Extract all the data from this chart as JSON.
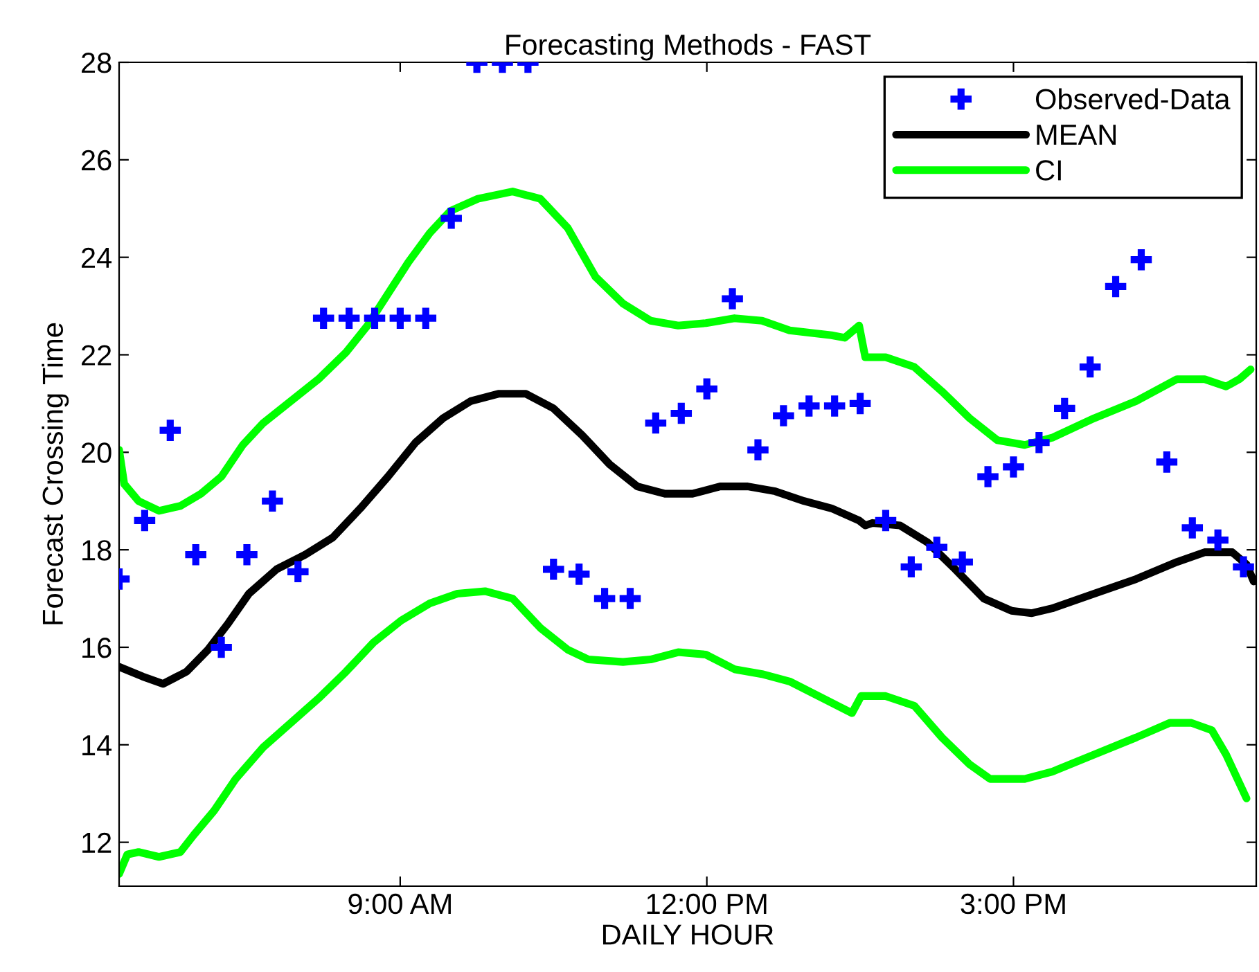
{
  "chart_data": {
    "type": "line",
    "title": "Forecasting Methods - FAST",
    "xlabel": "DAILY HOUR",
    "ylabel": "Forecast Crossing Time",
    "xlim": [
      6.25,
      17.375
    ],
    "ylim": [
      11.1,
      28
    ],
    "xticks": [
      {
        "value": 9,
        "label": "9:00 AM"
      },
      {
        "value": 12,
        "label": "12:00 PM"
      },
      {
        "value": 15,
        "label": "3:00 PM"
      }
    ],
    "yticks": [
      12,
      14,
      16,
      18,
      20,
      22,
      24,
      26,
      28
    ],
    "grid": false,
    "legend": "top right",
    "series": [
      {
        "name": "Observed-Data",
        "type": "scatter",
        "marker": "cross",
        "color": "#0000ff",
        "x": [
          6.25,
          6.5,
          6.75,
          7.0,
          7.25,
          7.5,
          7.75,
          8.0,
          8.25,
          8.5,
          8.75,
          9.0,
          9.25,
          9.5,
          9.75,
          10.0,
          10.25,
          10.5,
          10.75,
          11.0,
          11.25,
          11.5,
          11.75,
          12.0,
          12.25,
          12.5,
          12.75,
          13.0,
          13.25,
          13.5,
          13.75,
          14.0,
          14.25,
          14.5,
          14.75,
          15.0,
          15.25,
          15.5,
          15.75,
          16.0,
          16.25,
          16.5,
          16.75,
          17.0,
          17.25
        ],
        "values": [
          17.4,
          18.6,
          20.45,
          17.9,
          16.0,
          17.9,
          19.0,
          17.55,
          22.75,
          22.75,
          22.75,
          22.75,
          22.75,
          24.8,
          28,
          28,
          28,
          17.6,
          17.5,
          17.0,
          17.0,
          20.6,
          20.8,
          21.3,
          23.15,
          20.05,
          20.75,
          20.95,
          20.95,
          21.0,
          18.6,
          17.65,
          18.05,
          17.75,
          19.5,
          19.7,
          20.2,
          20.9,
          21.75,
          23.4,
          23.95,
          19.8,
          18.45,
          18.2,
          17.65
        ]
      },
      {
        "name": "MEAN",
        "line_style": "solid",
        "color": "#000000",
        "x": [
          6.25,
          6.48,
          6.68,
          6.91,
          7.12,
          7.32,
          7.52,
          7.79,
          8.07,
          8.34,
          8.61,
          8.88,
          9.15,
          9.42,
          9.69,
          9.96,
          10.23,
          10.5,
          10.78,
          11.05,
          11.32,
          11.59,
          11.86,
          12.13,
          12.4,
          12.67,
          12.95,
          13.22,
          13.49,
          13.55,
          13.62,
          13.89,
          14.16,
          14.43,
          14.71,
          14.98,
          15.18,
          15.38,
          15.79,
          16.2,
          16.6,
          16.87,
          17.14,
          17.28,
          17.35
        ],
        "values": [
          15.6,
          15.4,
          15.25,
          15.5,
          15.95,
          16.5,
          17.1,
          17.6,
          17.9,
          18.25,
          18.85,
          19.5,
          20.2,
          20.7,
          21.05,
          21.2,
          21.2,
          20.9,
          20.35,
          19.75,
          19.3,
          19.15,
          19.15,
          19.3,
          19.3,
          19.2,
          19.0,
          18.85,
          18.6,
          18.5,
          18.55,
          18.5,
          18.15,
          17.6,
          17.0,
          16.75,
          16.7,
          16.8,
          17.1,
          17.4,
          17.75,
          17.95,
          17.95,
          17.7,
          17.35
        ]
      },
      {
        "name": "CI",
        "line_style": "solid",
        "color": "#00ff00",
        "x": [
          6.25,
          6.3,
          6.44,
          6.64,
          6.85,
          7.05,
          7.25,
          7.46,
          7.66,
          7.93,
          8.2,
          8.47,
          8.68,
          8.88,
          9.08,
          9.29,
          9.49,
          9.76,
          10.1,
          10.37,
          10.64,
          10.91,
          11.18,
          11.45,
          11.72,
          11.99,
          12.27,
          12.54,
          12.81,
          13.22,
          13.35,
          13.49,
          13.55,
          13.75,
          14.03,
          14.3,
          14.57,
          14.84,
          15.11,
          15.38,
          15.79,
          16.2,
          16.6,
          16.87,
          17.08,
          17.21,
          17.32
        ],
        "values": [
          20.05,
          19.35,
          19.0,
          18.8,
          18.9,
          19.15,
          19.5,
          20.15,
          20.6,
          21.05,
          21.5,
          22.05,
          22.6,
          23.25,
          23.9,
          24.5,
          24.95,
          25.2,
          25.35,
          25.2,
          24.6,
          23.6,
          23.05,
          22.7,
          22.6,
          22.65,
          22.75,
          22.7,
          22.5,
          22.4,
          22.35,
          22.6,
          21.95,
          21.95,
          21.75,
          21.25,
          20.7,
          20.25,
          20.15,
          20.3,
          20.7,
          21.05,
          21.5,
          21.5,
          21.35,
          21.5,
          21.7
        ]
      },
      {
        "line_style": "solid",
        "color": "#00ff00",
        "x": [
          6.25,
          6.33,
          6.44,
          6.64,
          6.85,
          6.98,
          7.18,
          7.39,
          7.66,
          7.93,
          8.2,
          8.47,
          8.74,
          9.01,
          9.29,
          9.56,
          9.83,
          10.1,
          10.37,
          10.64,
          10.84,
          11.18,
          11.45,
          11.72,
          11.99,
          12.27,
          12.54,
          12.81,
          13.42,
          13.51,
          13.75,
          14.03,
          14.3,
          14.57,
          14.77,
          15.11,
          15.38,
          15.79,
          16.2,
          16.53,
          16.74,
          16.94,
          17.08,
          17.28
        ],
        "values": [
          11.35,
          11.75,
          11.8,
          11.7,
          11.8,
          12.15,
          12.65,
          13.3,
          13.95,
          14.45,
          14.95,
          15.5,
          16.1,
          16.55,
          16.9,
          17.1,
          17.15,
          17.0,
          16.4,
          15.95,
          15.75,
          15.7,
          15.75,
          15.9,
          15.85,
          15.55,
          15.45,
          15.3,
          14.65,
          15.0,
          15.0,
          14.8,
          14.15,
          13.6,
          13.3,
          13.3,
          13.45,
          13.8,
          14.15,
          14.45,
          14.45,
          14.3,
          13.8,
          12.9
        ]
      }
    ]
  }
}
